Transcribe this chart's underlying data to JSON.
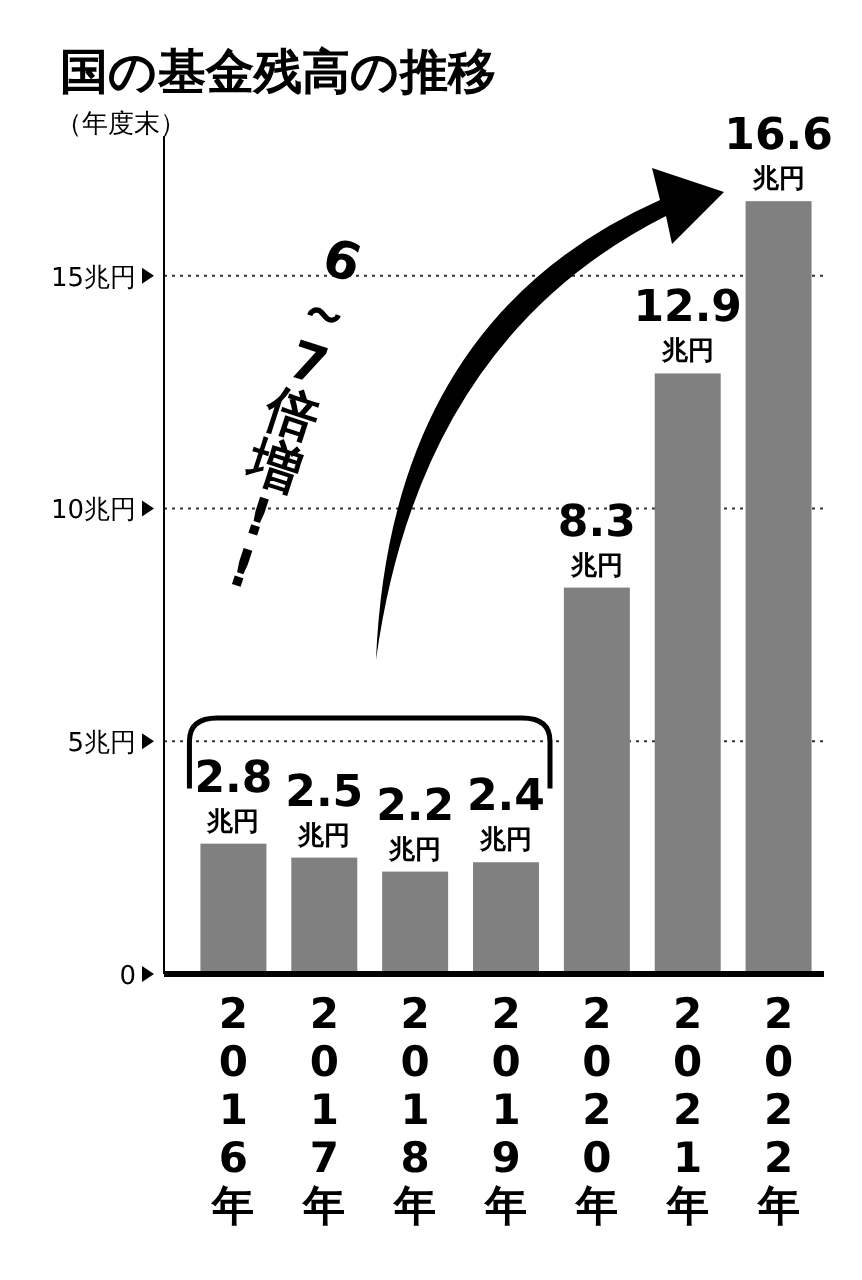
{
  "chart_data": {
    "type": "bar",
    "title": "国の基金残高の推移",
    "subtitle": "（年度末）",
    "categories": [
      "2016年",
      "2017年",
      "2018年",
      "2019年",
      "2020年",
      "2021年",
      "2022年"
    ],
    "values": [
      2.8,
      2.5,
      2.2,
      2.4,
      8.3,
      12.9,
      16.6
    ],
    "value_labels": [
      "2.8 兆円",
      "2.5 兆円",
      "2.2 兆円",
      "2.4 兆円",
      "8.3 兆円",
      "12.9 兆円",
      "16.6 兆円"
    ],
    "color": "#808080",
    "ylim": [
      0,
      18
    ],
    "yticks": [
      {
        "value": 0,
        "label": "0"
      },
      {
        "value": 5,
        "label": "5兆円"
      },
      {
        "value": 10,
        "label": "10兆円"
      },
      {
        "value": 15,
        "label": "15兆円"
      }
    ],
    "grid": "y",
    "annotations": [
      "6～7倍増!!"
    ]
  }
}
